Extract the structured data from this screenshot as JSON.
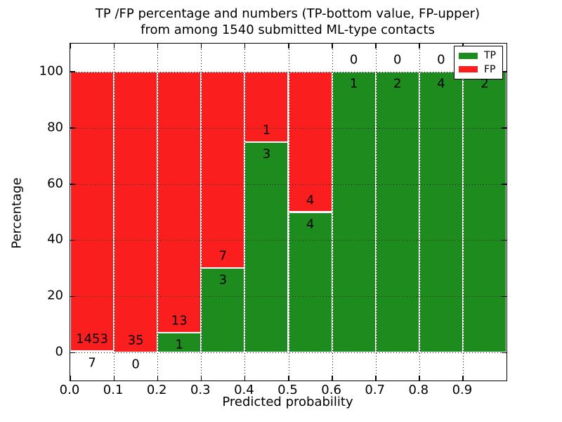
{
  "chart_data": {
    "type": "bar",
    "stacked": true,
    "title_line1": "TP /FP percentage and numbers (TP-bottom value, FP-upper)",
    "title_line2": "from among 1540 submitted ML-type contacts",
    "xlabel": "Predicted probability",
    "ylabel": "Percentage",
    "total_contacts": 1540,
    "legend_position": "upper right",
    "grid": true,
    "xlim": [
      0.0,
      1.0
    ],
    "ylim": [
      -10,
      110
    ],
    "xticks": [
      "0.0",
      "0.1",
      "0.2",
      "0.3",
      "0.4",
      "0.5",
      "0.6",
      "0.7",
      "0.8",
      "0.9"
    ],
    "yticks": [
      "0",
      "20",
      "40",
      "60",
      "80",
      "100"
    ],
    "ytick_values": [
      0,
      20,
      40,
      60,
      80,
      100
    ],
    "bin_width": 0.1,
    "categories": [
      "0.0-0.1",
      "0.1-0.2",
      "0.2-0.3",
      "0.3-0.4",
      "0.4-0.5",
      "0.5-0.6",
      "0.6-0.7",
      "0.7-0.8",
      "0.8-0.9",
      "0.9-1.0"
    ],
    "series": [
      {
        "name": "TP",
        "counts": [
          7,
          0,
          1,
          3,
          3,
          4,
          1,
          2,
          4,
          2
        ],
        "color": "#1e8b1e"
      },
      {
        "name": "FP",
        "counts": [
          1453,
          35,
          13,
          7,
          1,
          4,
          0,
          0,
          0,
          0
        ],
        "color": "#fa1e1e"
      }
    ],
    "tp_labels": [
      "7",
      "0",
      "1",
      "3",
      "3",
      "4",
      "1",
      "2",
      "4",
      "2"
    ],
    "fp_labels": [
      "1453",
      "35",
      "13",
      "7",
      "1",
      "4",
      "0",
      "0",
      "0",
      "0"
    ],
    "legend": {
      "tp_label": "TP",
      "fp_label": "FP",
      "tp_color": "#1e8b1e",
      "fp_color": "#fa1e1e"
    }
  }
}
